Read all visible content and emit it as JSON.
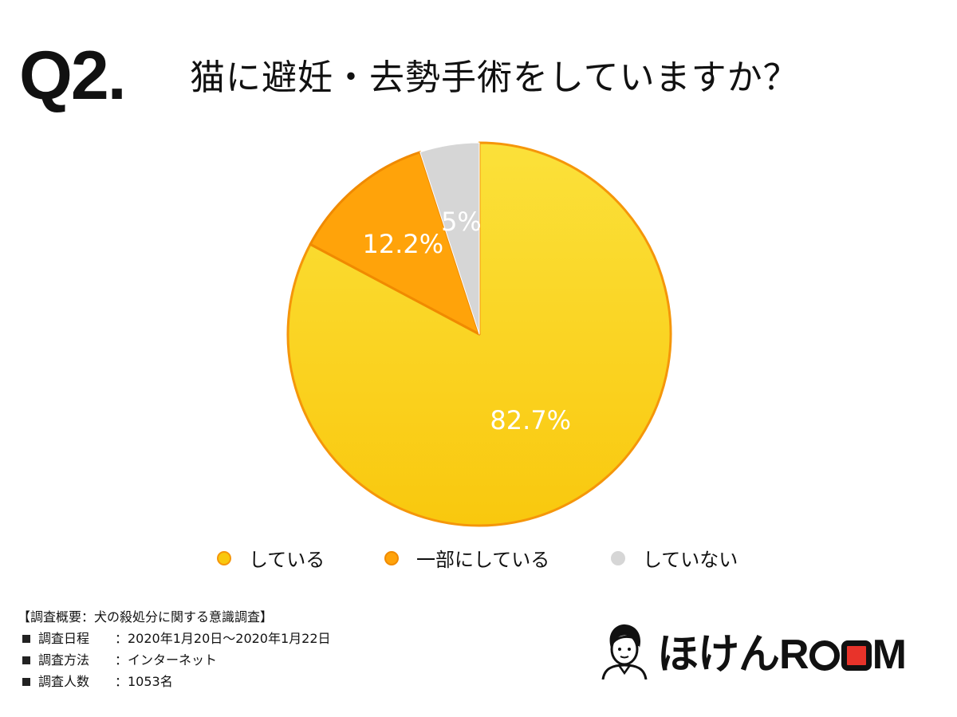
{
  "header": {
    "q_label": "Q2.",
    "question": "猫に避妊・去勢手術をしていますか？"
  },
  "chart_data": {
    "type": "pie",
    "title": "猫に避妊・去勢手術をしていますか？",
    "start": "12 o'clock, clockwise",
    "slices": [
      {
        "label": "している",
        "value": 82.7,
        "display": "82.7%",
        "color": "#F9C80E",
        "color_light": "#FBE13A",
        "stroke": "#F5960A"
      },
      {
        "label": "一部にしている",
        "value": 12.2,
        "display": "12.2%",
        "color": "#FFA30A",
        "color_light": "#FFB020",
        "stroke": "#F08A00"
      },
      {
        "label": "していない",
        "value": 5,
        "display": "5%",
        "color": "#D6D6D6",
        "color_light": "#D9D9D9",
        "stroke": "#FFFFFF"
      }
    ],
    "legend_position": "bottom"
  },
  "survey": {
    "title": "【調査概要：犬の殺処分に関する意識調査】",
    "rows": [
      {
        "key": "調査日程",
        "value": "：2020年1月20日〜2020年1月22日"
      },
      {
        "key": "調査方法",
        "value": "：インターネット"
      },
      {
        "key": "調査人数",
        "value": "：1053名"
      }
    ]
  },
  "logo": {
    "text": "ほけんROOM"
  }
}
